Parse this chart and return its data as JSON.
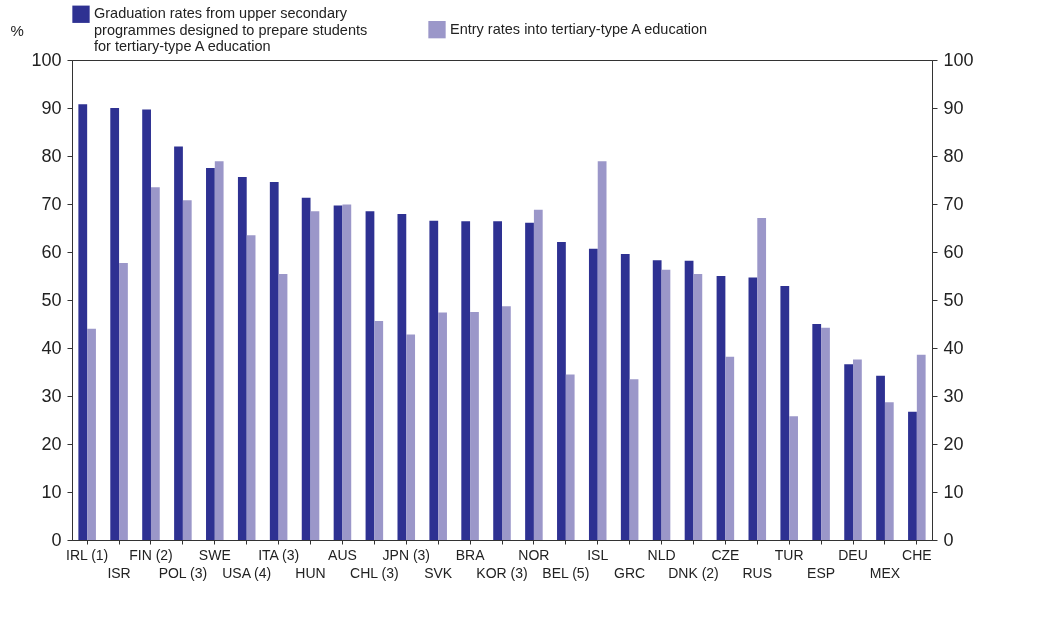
{
  "chart_data": {
    "type": "bar",
    "ylabel": "%",
    "categories": [
      "IRL (1)",
      "ISR",
      "FIN (2)",
      "POL (3)",
      "SWE",
      "USA (4)",
      "ITA (3)",
      "HUN",
      "AUS",
      "CHL (3)",
      "JPN (3)",
      "SVK",
      "BRA",
      "KOR (3)",
      "NOR",
      "BEL (5)",
      "ISL",
      "GRC",
      "NLD",
      "DNK (2)",
      "CZE",
      "RUS",
      "TUR",
      "ESP",
      "DEU",
      "MEX",
      "CHE"
    ],
    "series": [
      {
        "name": "Graduation rates from upper secondary programmes designed to prepare students for tertiary-type A education",
        "color": "#2e3192",
        "values": [
          90.8,
          90,
          89.7,
          82,
          77.5,
          75.6,
          74.6,
          71.3,
          69.7,
          68.5,
          67.9,
          66.5,
          66.4,
          66.4,
          66.1,
          62.1,
          60.7,
          59.6,
          58.3,
          58.2,
          55,
          54.7,
          52.9,
          45,
          36.6,
          34.2,
          26.7
        ]
      },
      {
        "name": "Entry rates into tertiary-type A education",
        "color": "#9b97c9",
        "values": [
          44,
          57.7,
          73.5,
          70.8,
          78.9,
          63.5,
          55.4,
          68.5,
          69.9,
          45.6,
          42.8,
          47.4,
          47.5,
          48.7,
          68.8,
          34.5,
          78.9,
          33.5,
          56.3,
          55.4,
          38.2,
          67.1,
          25.8,
          44.2,
          37.6,
          28.7,
          38.6
        ]
      }
    ],
    "ylim": [
      0,
      100
    ],
    "yticks": [
      0,
      10,
      20,
      30,
      40,
      50,
      60,
      70,
      80,
      90,
      100
    ],
    "y2lim": [
      0,
      100
    ],
    "y2ticks": [
      0,
      10,
      20,
      30,
      40,
      50,
      60,
      70,
      80,
      90,
      100
    ],
    "legend": "top",
    "grid": false
  }
}
